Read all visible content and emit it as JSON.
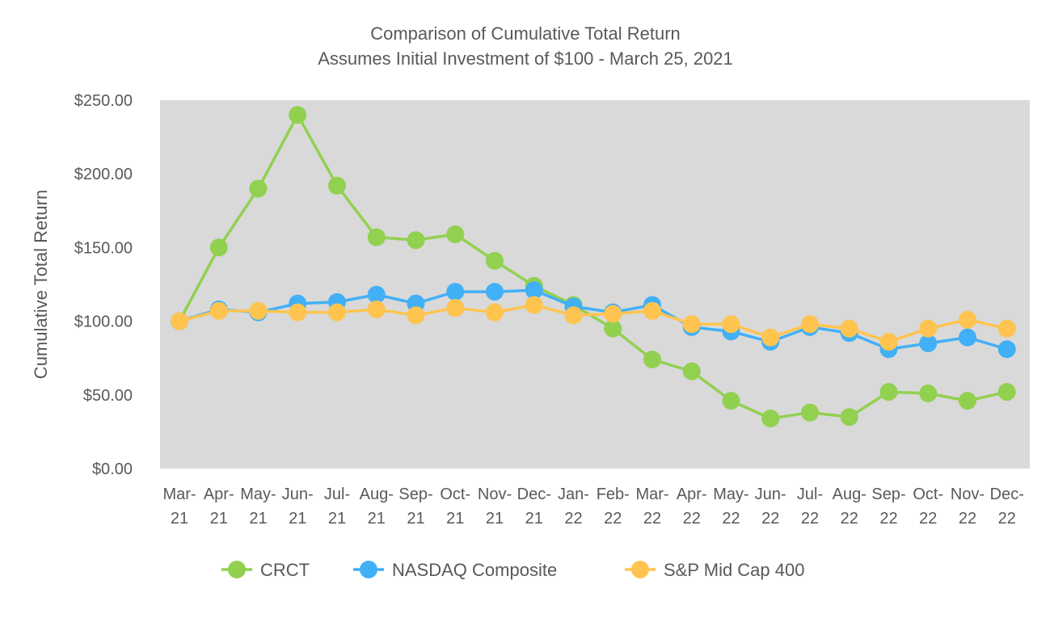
{
  "chart_data": {
    "type": "line",
    "title": "Comparison of Cumulative Total Return",
    "subtitle": "Assumes Initial Investment of $100 - March 25, 2021",
    "ylabel": "Cumulative Total Return",
    "xlabel": "",
    "ylim": [
      0,
      250
    ],
    "y_ticks": [
      "$0.00",
      "$50.00",
      "$100.00",
      "$150.00",
      "$200.00",
      "$250.00"
    ],
    "y_tick_values": [
      0,
      50,
      100,
      150,
      200,
      250
    ],
    "grid": false,
    "legend_position": "bottom",
    "categories": [
      [
        "Mar-",
        "21"
      ],
      [
        "Apr-",
        "21"
      ],
      [
        "May-",
        "21"
      ],
      [
        "Jun-",
        "21"
      ],
      [
        "Jul-",
        "21"
      ],
      [
        "Aug-",
        "21"
      ],
      [
        "Sep-",
        "21"
      ],
      [
        "Oct-",
        "21"
      ],
      [
        "Nov-",
        "21"
      ],
      [
        "Dec-",
        "21"
      ],
      [
        "Jan-",
        "22"
      ],
      [
        "Feb-",
        "22"
      ],
      [
        "Mar-",
        "22"
      ],
      [
        "Apr-",
        "22"
      ],
      [
        "May-",
        "22"
      ],
      [
        "Jun-",
        "22"
      ],
      [
        "Jul-",
        "22"
      ],
      [
        "Aug-",
        "22"
      ],
      [
        "Sep-",
        "22"
      ],
      [
        "Oct-",
        "22"
      ],
      [
        "Nov-",
        "22"
      ],
      [
        "Dec-",
        "22"
      ]
    ],
    "series": [
      {
        "name": "CRCT",
        "color": "#92d050",
        "values": [
          100,
          150,
          190,
          240,
          192,
          157,
          155,
          159,
          141,
          124,
          111,
          95,
          74,
          66,
          46,
          34,
          38,
          35,
          52,
          51,
          46,
          52
        ]
      },
      {
        "name": "NASDAQ Composite",
        "color": "#41b0f7",
        "values": [
          100,
          108,
          106,
          112,
          113,
          118,
          112,
          120,
          120,
          121,
          110,
          106,
          111,
          96,
          93,
          86,
          96,
          92,
          81,
          85,
          89,
          81
        ]
      },
      {
        "name": "S&P Mid Cap 400",
        "color": "#ffc44f",
        "values": [
          100,
          107,
          107,
          106,
          106,
          108,
          104,
          109,
          106,
          111,
          104,
          105,
          107,
          98,
          98,
          89,
          98,
          95,
          86,
          95,
          101,
          95
        ]
      }
    ],
    "plot_background": "#d9d9d9"
  }
}
